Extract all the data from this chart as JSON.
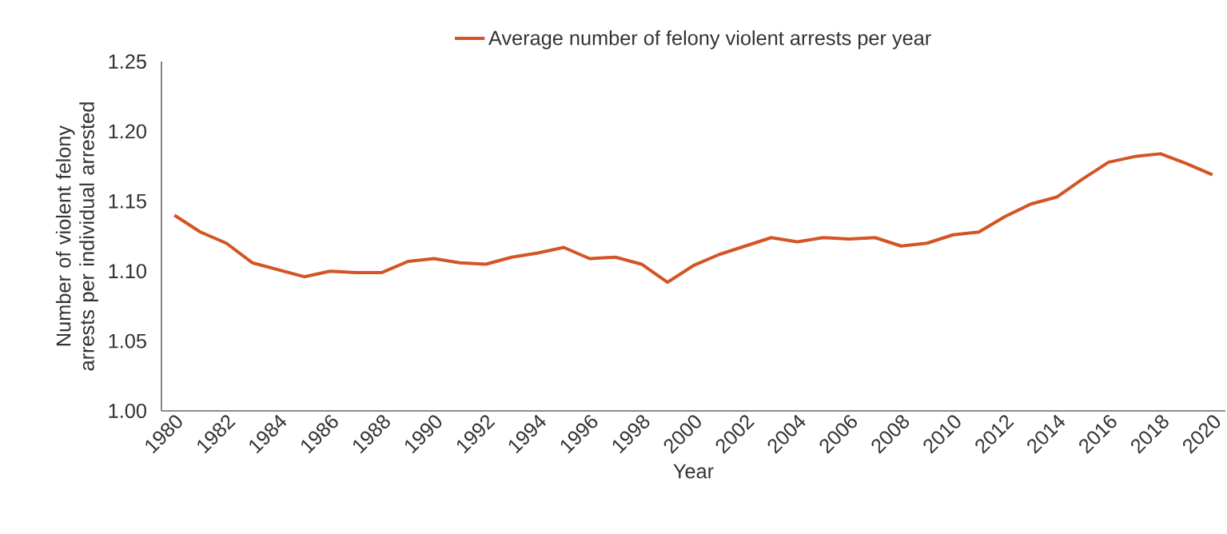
{
  "chart_data": {
    "type": "line",
    "xlabel": "Year",
    "ylabel": "Number of violent felony arrests per individual arrested",
    "x": [
      1980,
      1981,
      1982,
      1983,
      1984,
      1985,
      1986,
      1987,
      1988,
      1989,
      1990,
      1991,
      1992,
      1993,
      1994,
      1995,
      1996,
      1997,
      1998,
      1999,
      2000,
      2001,
      2002,
      2003,
      2004,
      2005,
      2006,
      2007,
      2008,
      2009,
      2010,
      2011,
      2012,
      2013,
      2014,
      2015,
      2016,
      2017,
      2018,
      2019,
      2020
    ],
    "series": [
      {
        "name": "Average number of felony violent arrests per year",
        "color": "#d35424",
        "values": [
          1.14,
          1.128,
          1.12,
          1.106,
          1.101,
          1.096,
          1.1,
          1.099,
          1.099,
          1.107,
          1.109,
          1.106,
          1.105,
          1.11,
          1.113,
          1.117,
          1.109,
          1.11,
          1.105,
          1.092,
          1.104,
          1.112,
          1.118,
          1.124,
          1.121,
          1.124,
          1.123,
          1.124,
          1.118,
          1.12,
          1.126,
          1.128,
          1.139,
          1.148,
          1.153,
          1.166,
          1.178,
          1.182,
          1.184,
          1.177,
          1.169
        ]
      }
    ],
    "xlim": [
      1979.5,
      2020.5
    ],
    "xticks": [
      1980,
      1982,
      1984,
      1986,
      1988,
      1990,
      1992,
      1994,
      1996,
      1998,
      2000,
      2002,
      2004,
      2006,
      2008,
      2010,
      2012,
      2014,
      2016,
      2018,
      2020
    ],
    "ylim": [
      1.0,
      1.25
    ],
    "yticks": [
      {
        "value": 1.0,
        "label": "1.00"
      },
      {
        "value": 1.05,
        "label": "1.05"
      },
      {
        "value": 1.1,
        "label": "1.10"
      },
      {
        "value": 1.15,
        "label": "1.15"
      },
      {
        "value": 1.2,
        "label": "1.20"
      },
      {
        "value": 1.25,
        "label": "1.25"
      }
    ],
    "grid": false,
    "legend": "top",
    "marker": "none",
    "line_style": "solid"
  }
}
